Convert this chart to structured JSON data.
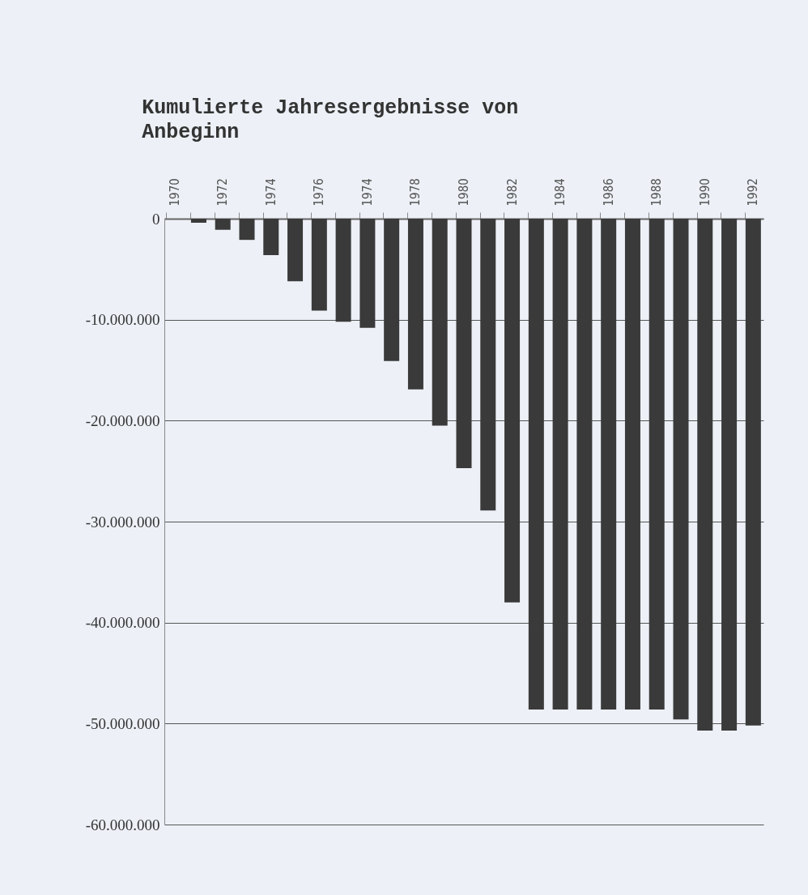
{
  "chart_data": {
    "type": "bar",
    "title": "Kumulierte Jahresergebnisse von Anbeginn",
    "categories": [
      "1970",
      null,
      "1972",
      null,
      "1974",
      null,
      "1976",
      null,
      "1974",
      null,
      "1978",
      null,
      "1980",
      null,
      "1982",
      null,
      "1984",
      null,
      "1986",
      null,
      "1988",
      null,
      "1990",
      null,
      "1992"
    ],
    "values": [
      0,
      -400000,
      -1100000,
      -2100000,
      -3600000,
      -6200000,
      -9100000,
      -10200000,
      -10800000,
      -14100000,
      -16900000,
      -20500000,
      -24700000,
      -28900000,
      -38000000,
      -48600000,
      -48600000,
      -48600000,
      -48600000,
      -48600000,
      -48600000,
      -49600000,
      -50700000,
      -50700000,
      -50200000
    ],
    "color": "#3a3a3a",
    "ylim": [
      -60000000,
      0
    ],
    "yticks": [
      {
        "value": 0,
        "label": "0"
      },
      {
        "value": -10000000,
        "label": "-10.000.000"
      },
      {
        "value": -20000000,
        "label": "-20.000.000"
      },
      {
        "value": -30000000,
        "label": "-30.000.000"
      },
      {
        "value": -40000000,
        "label": "-40.000.000"
      },
      {
        "value": -50000000,
        "label": "-50.000.000"
      },
      {
        "value": -60000000,
        "label": "-60.000.000"
      }
    ],
    "grid": "y"
  }
}
